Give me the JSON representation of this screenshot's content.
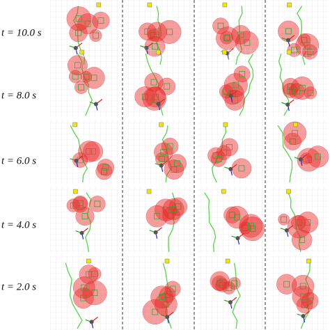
{
  "rows": [
    {
      "label": "t = 10.0 s"
    },
    {
      "label": "t = 8.0 s"
    },
    {
      "label": "t = 6.0 s"
    },
    {
      "label": "t = 4.0 s"
    },
    {
      "label": "t = 2.0 s"
    }
  ]
}
